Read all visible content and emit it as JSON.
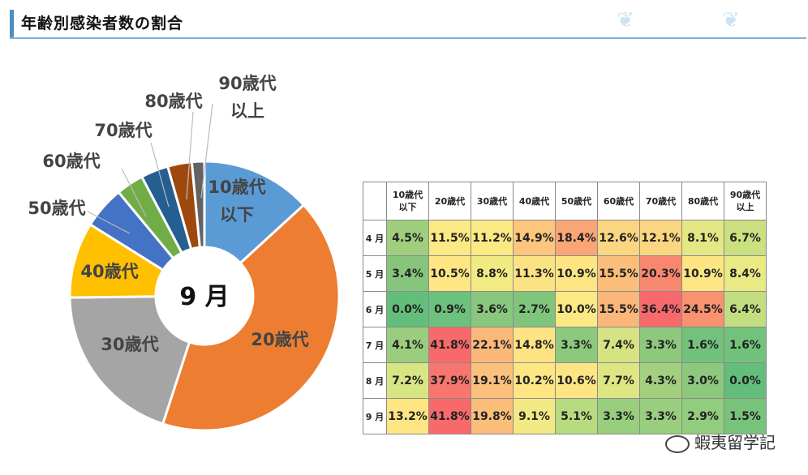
{
  "header": {
    "title": "年齢別感染者数の割合"
  },
  "chart_data": [
    {
      "type": "pie",
      "center_label": "9 月",
      "categories": [
        "10歳代以下",
        "20歳代",
        "30歳代",
        "40歳代",
        "50歳代",
        "60歳代",
        "70歳代",
        "80歳代",
        "90歳代以上"
      ],
      "label_lines": [
        [
          "10歳代",
          "以下"
        ],
        [
          "20歳代"
        ],
        [
          "30歳代"
        ],
        [
          "40歳代"
        ],
        [
          "50歳代"
        ],
        [
          "60歳代"
        ],
        [
          "70歳代"
        ],
        [
          "80歳代"
        ],
        [
          "90歳代",
          "以上"
        ]
      ],
      "values": [
        13.2,
        41.8,
        19.8,
        9.1,
        5.1,
        3.3,
        3.3,
        2.9,
        1.5
      ],
      "colors": [
        "#5b9bd5",
        "#ed7d31",
        "#a5a5a5",
        "#ffc000",
        "#4472c4",
        "#70ad47",
        "#255e91",
        "#9e480e",
        "#636363"
      ]
    },
    {
      "type": "table",
      "columns": [
        "10歳代\n以下",
        "20歳代",
        "30歳代",
        "40歳代",
        "50歳代",
        "60歳代",
        "70歳代",
        "80歳代",
        "90歳代\n以上"
      ],
      "rows": [
        {
          "label": "4 月",
          "values": [
            "4.5%",
            "11.5%",
            "11.2%",
            "14.9%",
            "18.4%",
            "12.6%",
            "12.1%",
            "8.1%",
            "6.7%"
          ],
          "colors": [
            "#9fce7d",
            "#fbe983",
            "#fbe983",
            "#fcc67c",
            "#f9a575",
            "#fbd680",
            "#fbd680",
            "#e3e884",
            "#cbe080"
          ]
        },
        {
          "label": "5 月",
          "values": [
            "3.4%",
            "10.5%",
            "8.8%",
            "11.3%",
            "10.9%",
            "15.5%",
            "20.3%",
            "10.9%",
            "8.4%"
          ],
          "colors": [
            "#86c57b",
            "#fee783",
            "#f2eb84",
            "#fbe383",
            "#fee583",
            "#fbbd7a",
            "#f8876f",
            "#fee583",
            "#e9ea84"
          ]
        },
        {
          "label": "6 月",
          "values": [
            "0.0%",
            "0.9%",
            "3.6%",
            "2.7%",
            "10.0%",
            "15.5%",
            "36.4%",
            "24.5%",
            "6.4%"
          ],
          "colors": [
            "#63be7b",
            "#6cc17c",
            "#89c77c",
            "#80c57c",
            "#fbe983",
            "#fbb779",
            "#f8696b",
            "#f9926f",
            "#c3de81"
          ]
        },
        {
          "label": "7 月",
          "values": [
            "4.1%",
            "41.8%",
            "22.1%",
            "14.8%",
            "3.3%",
            "7.4%",
            "3.3%",
            "1.6%",
            "1.6%"
          ],
          "colors": [
            "#9acd7e",
            "#f8696b",
            "#fbb87a",
            "#fde383",
            "#8dc97d",
            "#d5e382",
            "#8dc97d",
            "#73c27c",
            "#73c27c"
          ]
        },
        {
          "label": "8 月",
          "values": [
            "7.2%",
            "37.9%",
            "19.1%",
            "10.2%",
            "10.6%",
            "7.7%",
            "4.3%",
            "3.0%",
            "0.0%"
          ],
          "colors": [
            "#d8e583",
            "#f8766d",
            "#fbc17c",
            "#fde683",
            "#fee583",
            "#dde683",
            "#a2d07f",
            "#8cc87d",
            "#63be7b"
          ]
        },
        {
          "label": "9 月",
          "values": [
            "13.2%",
            "41.8%",
            "19.8%",
            "9.1%",
            "5.1%",
            "3.3%",
            "3.3%",
            "2.9%",
            "1.5%"
          ],
          "colors": [
            "#fde583",
            "#f8696b",
            "#fbbd7a",
            "#f2e984",
            "#b8db80",
            "#98ce7e",
            "#98ce7e",
            "#92cc7e",
            "#78c37c"
          ]
        }
      ]
    }
  ],
  "watermark": {
    "text": "蝦夷留学記"
  }
}
